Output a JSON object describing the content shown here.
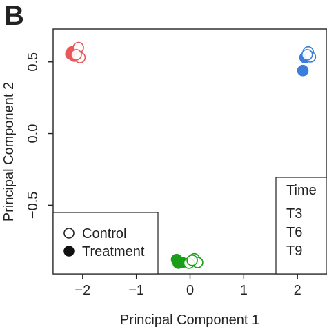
{
  "panel_label": "B",
  "chart_data": {
    "type": "scatter",
    "xlabel": "Principal Component 1",
    "ylabel": "Principal Component 2",
    "xlim": [
      -2.55,
      2.55
    ],
    "ylim": [
      -0.98,
      0.73
    ],
    "x_ticks": [
      -2,
      -1,
      0,
      1,
      2
    ],
    "x_tick_labels": [
      "−2",
      "−1",
      "0",
      "1",
      "2"
    ],
    "y_ticks": [
      -0.5,
      0.0,
      0.5
    ],
    "y_tick_labels": [
      "−0.5",
      "0.0",
      "0.5"
    ],
    "grid": false,
    "legends": [
      {
        "placement": "bottom-left",
        "title": "",
        "entries": [
          {
            "label": "Control",
            "marker": "open-circle"
          },
          {
            "label": "Treatment",
            "marker": "filled-circle"
          }
        ]
      },
      {
        "placement": "bottom-right",
        "title": "Time",
        "entries": [
          {
            "label": "T3",
            "color": "#1a9e1a"
          },
          {
            "label": "T6",
            "color": "#3b7ddd"
          },
          {
            "label": "T9",
            "color": "#e8575a"
          }
        ]
      }
    ],
    "series": [
      {
        "name": "T3",
        "color": "#1a9e1a",
        "control": [
          [
            0.08,
            -0.875
          ],
          [
            0.14,
            -0.9
          ],
          [
            -0.02,
            -0.905
          ],
          [
            0.04,
            -0.885
          ]
        ],
        "treatment": [
          [
            -0.25,
            -0.88
          ],
          [
            -0.2,
            -0.895
          ],
          [
            -0.15,
            -0.9
          ],
          [
            -0.22,
            -0.905
          ]
        ]
      },
      {
        "name": "T6",
        "color": "#3b7ddd",
        "control": [
          [
            2.2,
            0.57
          ],
          [
            2.24,
            0.535
          ],
          [
            2.18,
            0.55
          ]
        ],
        "treatment": [
          [
            2.14,
            0.53
          ],
          [
            2.1,
            0.44
          ]
        ]
      },
      {
        "name": "T9",
        "color": "#e8575a",
        "control": [
          [
            -2.08,
            0.6
          ],
          [
            -2.05,
            0.53
          ],
          [
            -2.12,
            0.55
          ]
        ],
        "treatment": [
          [
            -2.2,
            0.57
          ],
          [
            -2.15,
            0.54
          ],
          [
            -2.22,
            0.555
          ]
        ]
      }
    ]
  }
}
